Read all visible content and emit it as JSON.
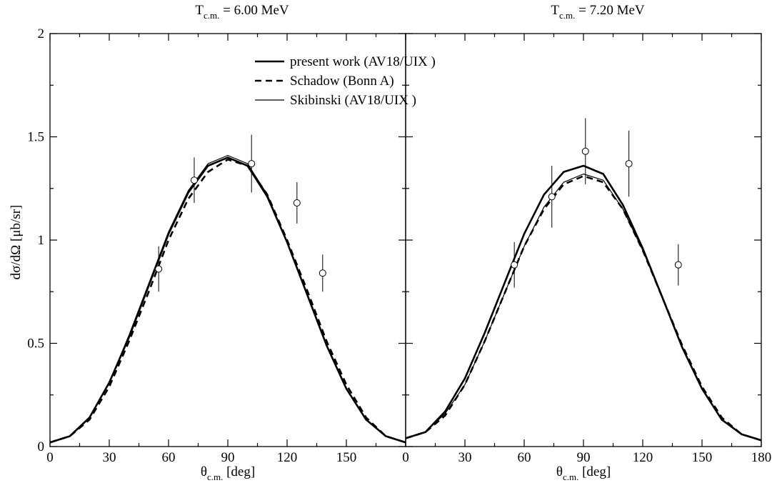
{
  "chart_data": [
    {
      "type": "line",
      "panel": "left",
      "title": {
        "main": "T",
        "sub": "c.m.",
        "rest": " = 6.00 MeV"
      },
      "xlabel": {
        "main": "θ",
        "sub": "c.m.",
        "rest": " [deg]"
      },
      "ylabel": "dσ/dΩ [μb/sr]",
      "xlim": [
        0,
        180
      ],
      "ylim": [
        0,
        2
      ],
      "x_ticks": [
        0,
        30,
        60,
        90,
        120,
        150,
        180
      ],
      "x_tick_labels": [
        "0",
        "30",
        "60",
        "90",
        "120",
        "150",
        ""
      ],
      "y_ticks": [
        0,
        0.5,
        1,
        1.5,
        2
      ],
      "y_tick_labels": [
        "0",
        "0.5",
        "1",
        "1.5",
        "2"
      ],
      "grid": false,
      "legend": {
        "placement": "top-center",
        "entries": [
          {
            "label": "present work (AV18/UIX )",
            "style": "thick-solid"
          },
          {
            "label": "Schadow (Bonn A)",
            "style": "dashed"
          },
          {
            "label": "Skibinski  (AV18/UIX )",
            "style": "thin-solid"
          }
        ]
      },
      "series": [
        {
          "name": "present work (AV18/UIX )",
          "style": "thick-solid",
          "x": [
            0,
            10,
            20,
            30,
            40,
            50,
            60,
            70,
            80,
            90,
            100,
            110,
            120,
            130,
            140,
            150,
            160,
            170,
            180
          ],
          "y": [
            0.02,
            0.05,
            0.14,
            0.31,
            0.53,
            0.78,
            1.03,
            1.23,
            1.36,
            1.4,
            1.36,
            1.21,
            0.99,
            0.74,
            0.49,
            0.28,
            0.13,
            0.05,
            0.02
          ]
        },
        {
          "name": "Schadow (Bonn A)",
          "style": "dashed",
          "x": [
            0,
            10,
            20,
            30,
            40,
            50,
            60,
            70,
            80,
            90,
            100,
            110,
            120,
            130,
            140,
            150,
            160,
            170,
            180
          ],
          "y": [
            0.02,
            0.05,
            0.13,
            0.29,
            0.51,
            0.75,
            1.0,
            1.2,
            1.33,
            1.39,
            1.36,
            1.22,
            1.0,
            0.76,
            0.51,
            0.3,
            0.14,
            0.05,
            0.02
          ]
        },
        {
          "name": "Skibinski  (AV18/UIX )",
          "style": "thin-solid",
          "x": [
            0,
            10,
            20,
            30,
            40,
            50,
            60,
            70,
            80,
            90,
            100,
            110,
            120,
            130,
            140,
            150,
            160,
            170,
            180
          ],
          "y": [
            0.02,
            0.05,
            0.14,
            0.31,
            0.54,
            0.79,
            1.04,
            1.24,
            1.37,
            1.41,
            1.37,
            1.22,
            0.99,
            0.74,
            0.49,
            0.28,
            0.13,
            0.05,
            0.02
          ]
        }
      ],
      "data_points": {
        "x": [
          55,
          73,
          102,
          125,
          138
        ],
        "y": [
          0.86,
          1.29,
          1.37,
          1.18,
          0.84
        ],
        "err": [
          0.11,
          0.11,
          0.14,
          0.1,
          0.09
        ]
      }
    },
    {
      "type": "line",
      "panel": "right",
      "title": {
        "main": "T",
        "sub": "c.m.",
        "rest": " = 7.20 MeV"
      },
      "xlabel": {
        "main": "θ",
        "sub": "c.m.",
        "rest": " [deg]"
      },
      "xlim": [
        0,
        180
      ],
      "ylim": [
        0,
        2
      ],
      "x_ticks": [
        0,
        30,
        60,
        90,
        120,
        150,
        180
      ],
      "x_tick_labels": [
        "0",
        "30",
        "60",
        "90",
        "120",
        "150",
        "180"
      ],
      "grid": false,
      "series": [
        {
          "name": "present work (AV18/UIX )",
          "style": "thick-solid",
          "x": [
            0,
            10,
            20,
            30,
            40,
            50,
            60,
            70,
            80,
            90,
            100,
            110,
            120,
            130,
            140,
            150,
            160,
            170,
            180
          ],
          "y": [
            0.04,
            0.07,
            0.17,
            0.33,
            0.55,
            0.79,
            1.03,
            1.22,
            1.33,
            1.36,
            1.32,
            1.17,
            0.96,
            0.72,
            0.48,
            0.28,
            0.13,
            0.06,
            0.03
          ]
        },
        {
          "name": "Schadow (Bonn A)",
          "style": "dashed",
          "x": [
            0,
            10,
            20,
            30,
            40,
            50,
            60,
            70,
            80,
            90,
            100,
            110,
            120,
            130,
            140,
            150,
            160,
            170,
            180
          ],
          "y": [
            0.04,
            0.07,
            0.15,
            0.3,
            0.51,
            0.74,
            0.97,
            1.15,
            1.27,
            1.31,
            1.28,
            1.15,
            0.95,
            0.72,
            0.49,
            0.29,
            0.14,
            0.06,
            0.03
          ]
        },
        {
          "name": "Skibinski  (AV18/UIX )",
          "style": "thin-solid",
          "x": [
            0,
            10,
            20,
            30,
            40,
            50,
            60,
            70,
            80,
            90,
            100,
            110,
            120,
            130,
            140,
            150,
            160,
            170,
            180
          ],
          "y": [
            0.04,
            0.07,
            0.16,
            0.3,
            0.51,
            0.74,
            0.97,
            1.16,
            1.28,
            1.32,
            1.29,
            1.15,
            0.95,
            0.72,
            0.48,
            0.28,
            0.13,
            0.06,
            0.03
          ]
        }
      ],
      "data_points": {
        "x": [
          55,
          74,
          91,
          113,
          138
        ],
        "y": [
          0.88,
          1.21,
          1.43,
          1.37,
          0.88
        ],
        "err": [
          0.11,
          0.15,
          0.16,
          0.16,
          0.1
        ]
      }
    }
  ]
}
